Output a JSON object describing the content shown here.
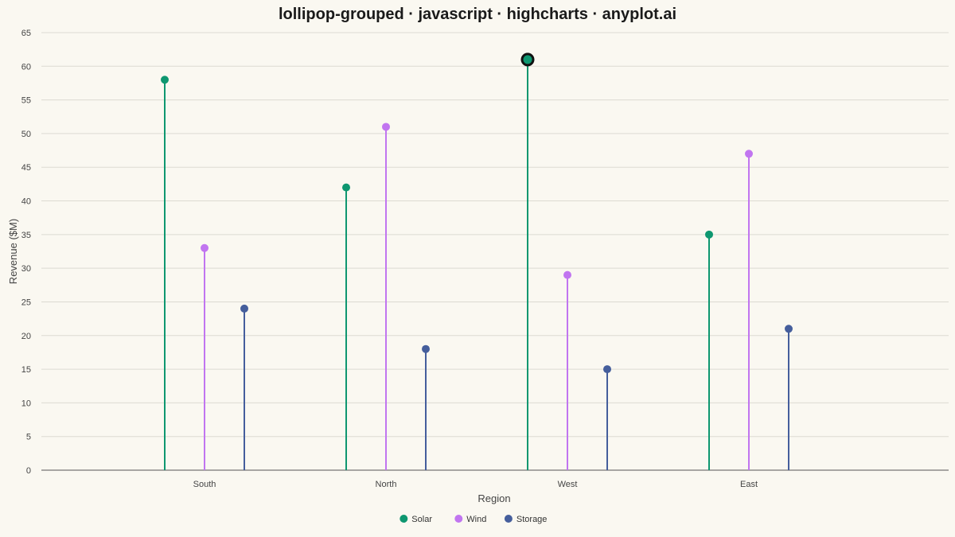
{
  "chart_data": {
    "type": "lollipop",
    "title": "lollipop-grouped · javascript · highcharts · anyplot.ai",
    "xlabel": "Region",
    "ylabel": "Revenue ($M)",
    "ylim": [
      0,
      65
    ],
    "ytick_step": 5,
    "grid": true,
    "legend_position": "bottom-center",
    "categories": [
      "South",
      "North",
      "West",
      "East"
    ],
    "series": [
      {
        "name": "Solar",
        "color": "#0E9770",
        "values": [
          58,
          42,
          61,
          35
        ]
      },
      {
        "name": "Wind",
        "color": "#C175F0",
        "values": [
          33,
          51,
          29,
          47
        ]
      },
      {
        "name": "Storage",
        "color": "#455E9C",
        "values": [
          24,
          18,
          15,
          21
        ]
      }
    ],
    "highlight": {
      "series": 0,
      "category": 2
    }
  }
}
